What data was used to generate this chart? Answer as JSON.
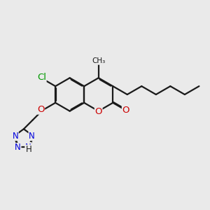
{
  "bg_color": "#eaeaea",
  "bond_color": "#1a1a1a",
  "bond_width": 1.6,
  "dbo": 0.045,
  "figsize": [
    3.0,
    3.0
  ],
  "dpi": 100,
  "colors": {
    "N": "#0000dd",
    "O": "#cc0000",
    "Cl": "#009900",
    "C": "#1a1a1a",
    "H": "#1a1a1a"
  }
}
